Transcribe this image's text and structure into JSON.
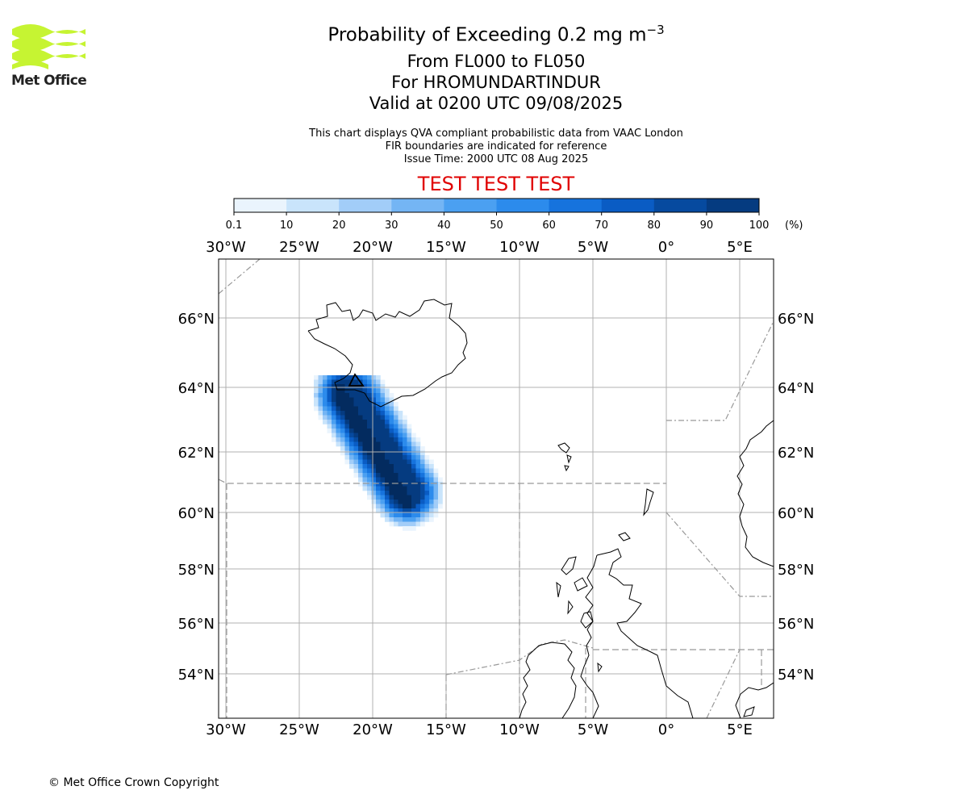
{
  "logo": {
    "text": "Met Office",
    "color": "#c6f432"
  },
  "header": {
    "title_prefix": "Probability of Exceeding 0.2 mg m",
    "title_sup": "−3",
    "level_range": "From FL000 to FL050",
    "volcano": "For HROMUNDARTINDUR",
    "valid_time": "Valid at 0200 UTC 09/08/2025",
    "description": "This chart displays QVA compliant probabilistic data from VAAC London",
    "fir_note": "FIR boundaries are indicated for reference",
    "issue_time": "Issue Time: 2000 UTC 08 Aug 2025",
    "test_banner": "TEST TEST TEST"
  },
  "colorbar": {
    "ticks": [
      "0.1",
      "10",
      "20",
      "30",
      "40",
      "50",
      "60",
      "70",
      "80",
      "90",
      "100"
    ],
    "unit": "(%)",
    "colors": [
      "#eaf4fd",
      "#c9e4fb",
      "#a2cdf8",
      "#74b5f4",
      "#4ba0f1",
      "#2c8bec",
      "#1673dd",
      "#0a5cc4",
      "#064a9f",
      "#053b80",
      "#032b5f"
    ]
  },
  "map": {
    "lon_labels": [
      "30°W",
      "25°W",
      "20°W",
      "15°W",
      "10°W",
      "5°W",
      "0°",
      "5°E"
    ],
    "lat_labels": [
      "66°N",
      "64°N",
      "62°N",
      "60°N",
      "58°N",
      "56°N",
      "54°N"
    ],
    "volcano_marker": "triangle-marker"
  },
  "footer": {
    "copyright": "© Met Office Crown Copyright"
  }
}
